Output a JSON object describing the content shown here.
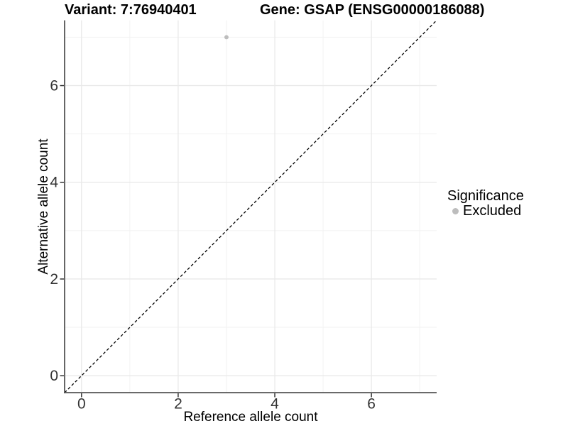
{
  "chart_data": {
    "type": "scatter",
    "title_left": "Variant: 7:76940401",
    "title_right": "Gene: GSAP (ENSG00000186088)",
    "xlabel": "Reference allele count",
    "ylabel": "Alternative allele count",
    "xlim": [
      -0.35,
      7.35
    ],
    "ylim": [
      -0.35,
      7.35
    ],
    "x_breaks": [
      0,
      2,
      4,
      6
    ],
    "y_breaks": [
      0,
      2,
      4,
      6
    ],
    "x_tick_labels": [
      "0",
      "2",
      "4",
      "6"
    ],
    "y_tick_labels": [
      "0",
      "2",
      "4",
      "6"
    ],
    "x_minor_breaks": [
      1,
      3,
      5,
      7
    ],
    "y_minor_breaks": [
      1,
      3,
      5,
      7
    ],
    "points": [
      {
        "x": 3,
        "y": 7,
        "series": "Excluded"
      }
    ],
    "reference_line": {
      "slope": 1,
      "intercept": 0,
      "style": "dashed",
      "color": "#000000"
    },
    "legend": {
      "title": "Significance",
      "position": "right",
      "items": [
        {
          "label": "Excluded",
          "color": "#bdbdbd"
        }
      ]
    },
    "grid": true,
    "colors": {
      "point_excluded": "#bdbdbd",
      "grid_major": "#e9e9e9",
      "grid_minor": "#f2f2f2",
      "axis_line": "#555555",
      "tick_mark": "#333333",
      "tick_text": "#333333",
      "title_text": "#000000"
    }
  }
}
